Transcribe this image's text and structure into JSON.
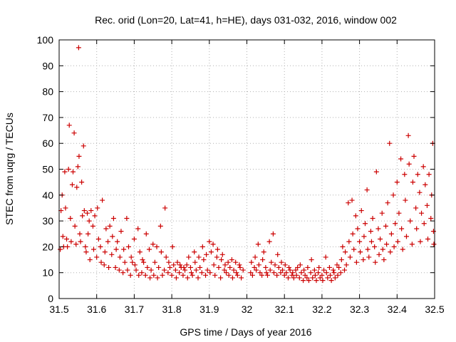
{
  "chart_data": {
    "type": "scatter",
    "title": "Rec. orid (Lon=20, Lat=41, h=HE), days 031-032, 2016, window 002",
    "xlabel": "GPS time / Days of year 2016",
    "ylabel": "STEC from uqrg / TECUs",
    "xlim": [
      31.5,
      32.5
    ],
    "ylim": [
      0,
      100
    ],
    "xticks": [
      "31.5",
      "31.6",
      "31.7",
      "31.8",
      "31.9",
      "32",
      "32.1",
      "32.2",
      "32.3",
      "32.4",
      "32.5"
    ],
    "yticks": [
      "0",
      "10",
      "20",
      "30",
      "40",
      "50",
      "60",
      "70",
      "80",
      "90",
      "100"
    ],
    "marker": "plus",
    "color": "#cc0000",
    "grid": true,
    "series": [
      {
        "name": "STEC",
        "points": [
          [
            31.503,
            19
          ],
          [
            31.505,
            34
          ],
          [
            31.508,
            40
          ],
          [
            31.51,
            24
          ],
          [
            31.512,
            20
          ],
          [
            31.515,
            49
          ],
          [
            31.517,
            35
          ],
          [
            31.52,
            23
          ],
          [
            31.522,
            20
          ],
          [
            31.525,
            50
          ],
          [
            31.527,
            67
          ],
          [
            31.53,
            31
          ],
          [
            31.532,
            22
          ],
          [
            31.535,
            44
          ],
          [
            31.537,
            49
          ],
          [
            31.54,
            64
          ],
          [
            31.542,
            28
          ],
          [
            31.545,
            21
          ],
          [
            31.547,
            43
          ],
          [
            31.55,
            51
          ],
          [
            31.552,
            97
          ],
          [
            31.553,
            55
          ],
          [
            31.555,
            25
          ],
          [
            31.557,
            22
          ],
          [
            31.56,
            45
          ],
          [
            31.562,
            32
          ],
          [
            31.565,
            59
          ],
          [
            31.567,
            34
          ],
          [
            31.57,
            20
          ],
          [
            31.572,
            18
          ],
          [
            31.575,
            33
          ],
          [
            31.577,
            25
          ],
          [
            31.58,
            30
          ],
          [
            31.582,
            15
          ],
          [
            31.585,
            34
          ],
          [
            31.59,
            28
          ],
          [
            31.592,
            19
          ],
          [
            31.595,
            32
          ],
          [
            31.6,
            16
          ],
          [
            31.602,
            35
          ],
          [
            31.605,
            23
          ],
          [
            31.61,
            20
          ],
          [
            31.612,
            14
          ],
          [
            31.615,
            38
          ],
          [
            31.62,
            13
          ],
          [
            31.622,
            18
          ],
          [
            31.625,
            27
          ],
          [
            31.63,
            22
          ],
          [
            31.632,
            12
          ],
          [
            31.635,
            28
          ],
          [
            31.64,
            17
          ],
          [
            31.642,
            24
          ],
          [
            31.645,
            31
          ],
          [
            31.65,
            12
          ],
          [
            31.652,
            19
          ],
          [
            31.655,
            22
          ],
          [
            31.66,
            11
          ],
          [
            31.662,
            16
          ],
          [
            31.665,
            26
          ],
          [
            31.67,
            10
          ],
          [
            31.672,
            19
          ],
          [
            31.675,
            14
          ],
          [
            31.68,
            31
          ],
          [
            31.682,
            11
          ],
          [
            31.685,
            20
          ],
          [
            31.69,
            9
          ],
          [
            31.692,
            16
          ],
          [
            31.695,
            14
          ],
          [
            31.7,
            23
          ],
          [
            31.702,
            13
          ],
          [
            31.705,
            11
          ],
          [
            31.71,
            27
          ],
          [
            31.712,
            9
          ],
          [
            31.715,
            18
          ],
          [
            31.72,
            10
          ],
          [
            31.722,
            15
          ],
          [
            31.725,
            14
          ],
          [
            31.73,
            9
          ],
          [
            31.732,
            25
          ],
          [
            31.735,
            12
          ],
          [
            31.74,
            19
          ],
          [
            31.742,
            8
          ],
          [
            31.745,
            11
          ],
          [
            31.75,
            21
          ],
          [
            31.752,
            9
          ],
          [
            31.755,
            14
          ],
          [
            31.76,
            20
          ],
          [
            31.762,
            8
          ],
          [
            31.765,
            12
          ],
          [
            31.77,
            28
          ],
          [
            31.772,
            18
          ],
          [
            31.775,
            9
          ],
          [
            31.78,
            11
          ],
          [
            31.782,
            35
          ],
          [
            31.785,
            16
          ],
          [
            31.79,
            10
          ],
          [
            31.792,
            14
          ],
          [
            31.795,
            12
          ],
          [
            31.8,
            9
          ],
          [
            31.802,
            20
          ],
          [
            31.805,
            13
          ],
          [
            31.81,
            11
          ],
          [
            31.812,
            8
          ],
          [
            31.815,
            14
          ],
          [
            31.82,
            10
          ],
          [
            31.822,
            13
          ],
          [
            31.825,
            12
          ],
          [
            31.83,
            9
          ],
          [
            31.832,
            12
          ],
          [
            31.835,
            11
          ],
          [
            31.84,
            13
          ],
          [
            31.842,
            8
          ],
          [
            31.845,
            16
          ],
          [
            31.85,
            12
          ],
          [
            31.852,
            10
          ],
          [
            31.855,
            9
          ],
          [
            31.86,
            18
          ],
          [
            31.862,
            14
          ],
          [
            31.865,
            11
          ],
          [
            31.87,
            8
          ],
          [
            31.872,
            16
          ],
          [
            31.875,
            12
          ],
          [
            31.88,
            10
          ],
          [
            31.882,
            20
          ],
          [
            31.885,
            15
          ],
          [
            31.89,
            9
          ],
          [
            31.892,
            17
          ],
          [
            31.895,
            11
          ],
          [
            31.9,
            22
          ],
          [
            31.902,
            10
          ],
          [
            31.905,
            18
          ],
          [
            31.91,
            21
          ],
          [
            31.912,
            13
          ],
          [
            31.915,
            9
          ],
          [
            31.92,
            16
          ],
          [
            31.922,
            19
          ],
          [
            31.925,
            12
          ],
          [
            31.93,
            8
          ],
          [
            31.932,
            15
          ],
          [
            31.935,
            17
          ],
          [
            31.94,
            11
          ],
          [
            31.942,
            13
          ],
          [
            31.945,
            10
          ],
          [
            31.95,
            14
          ],
          [
            31.952,
            9
          ],
          [
            31.955,
            12
          ],
          [
            31.96,
            15
          ],
          [
            31.962,
            8
          ],
          [
            31.965,
            11
          ],
          [
            31.97,
            14
          ],
          [
            31.972,
            10
          ],
          [
            31.975,
            9
          ],
          [
            31.98,
            13
          ],
          [
            31.982,
            12
          ],
          [
            31.985,
            8
          ],
          [
            31.99,
            11
          ],
          [
            32.01,
            10
          ],
          [
            32.012,
            14
          ],
          [
            32.015,
            9
          ],
          [
            32.02,
            12
          ],
          [
            32.022,
            16
          ],
          [
            32.025,
            11
          ],
          [
            32.03,
            21
          ],
          [
            32.032,
            13
          ],
          [
            32.035,
            10
          ],
          [
            32.04,
            9
          ],
          [
            32.042,
            15
          ],
          [
            32.045,
            18
          ],
          [
            32.05,
            12
          ],
          [
            32.052,
            10
          ],
          [
            32.055,
            9
          ],
          [
            32.06,
            22
          ],
          [
            32.062,
            11
          ],
          [
            32.065,
            14
          ],
          [
            32.07,
            25
          ],
          [
            32.072,
            10
          ],
          [
            32.075,
            13
          ],
          [
            32.08,
            9
          ],
          [
            32.082,
            17
          ],
          [
            32.085,
            12
          ],
          [
            32.09,
            10
          ],
          [
            32.092,
            14
          ],
          [
            32.095,
            11
          ],
          [
            32.1,
            9
          ],
          [
            32.102,
            13
          ],
          [
            32.105,
            10
          ],
          [
            32.11,
            8
          ],
          [
            32.112,
            12
          ],
          [
            32.115,
            11
          ],
          [
            32.12,
            9
          ],
          [
            32.122,
            10
          ],
          [
            32.125,
            8
          ],
          [
            32.13,
            11
          ],
          [
            32.132,
            9
          ],
          [
            32.135,
            12
          ],
          [
            32.14,
            8
          ],
          [
            32.142,
            13
          ],
          [
            32.145,
            10
          ],
          [
            32.15,
            7
          ],
          [
            32.152,
            11
          ],
          [
            32.155,
            9
          ],
          [
            32.16,
            8
          ],
          [
            32.162,
            12
          ],
          [
            32.165,
            7
          ],
          [
            32.17,
            10
          ],
          [
            32.172,
            15
          ],
          [
            32.175,
            8
          ],
          [
            32.18,
            11
          ],
          [
            32.182,
            9
          ],
          [
            32.185,
            7
          ],
          [
            32.19,
            10
          ],
          [
            32.192,
            12
          ],
          [
            32.195,
            8
          ],
          [
            32.2,
            9
          ],
          [
            32.202,
            7
          ],
          [
            32.205,
            11
          ],
          [
            32.21,
            16
          ],
          [
            32.212,
            10
          ],
          [
            32.215,
            8
          ],
          [
            32.22,
            12
          ],
          [
            32.222,
            9
          ],
          [
            32.225,
            7
          ],
          [
            32.23,
            11
          ],
          [
            32.232,
            10
          ],
          [
            32.235,
            8
          ],
          [
            32.24,
            13
          ],
          [
            32.242,
            9
          ],
          [
            32.245,
            12
          ],
          [
            32.25,
            10
          ],
          [
            32.252,
            15
          ],
          [
            32.255,
            20
          ],
          [
            32.26,
            11
          ],
          [
            32.262,
            18
          ],
          [
            32.265,
            13
          ],
          [
            32.27,
            37
          ],
          [
            32.272,
            22
          ],
          [
            32.275,
            16
          ],
          [
            32.28,
            38
          ],
          [
            32.282,
            25
          ],
          [
            32.285,
            19
          ],
          [
            32.29,
            32
          ],
          [
            32.292,
            14
          ],
          [
            32.295,
            27
          ],
          [
            32.3,
            22
          ],
          [
            32.302,
            18
          ],
          [
            32.305,
            34
          ],
          [
            32.31,
            15
          ],
          [
            32.312,
            24
          ],
          [
            32.315,
            29
          ],
          [
            32.32,
            42
          ],
          [
            32.322,
            19
          ],
          [
            32.325,
            16
          ],
          [
            32.33,
            26
          ],
          [
            32.332,
            22
          ],
          [
            32.335,
            31
          ],
          [
            32.34,
            20
          ],
          [
            32.342,
            14
          ],
          [
            32.345,
            49
          ],
          [
            32.35,
            27
          ],
          [
            32.352,
            17
          ],
          [
            32.355,
            23
          ],
          [
            32.36,
            33
          ],
          [
            32.362,
            19
          ],
          [
            32.365,
            15
          ],
          [
            32.37,
            28
          ],
          [
            32.372,
            21
          ],
          [
            32.375,
            37
          ],
          [
            32.38,
            60
          ],
          [
            32.382,
            18
          ],
          [
            32.385,
            25
          ],
          [
            32.39,
            40
          ],
          [
            32.392,
            20
          ],
          [
            32.395,
            29
          ],
          [
            32.4,
            45
          ],
          [
            32.402,
            22
          ],
          [
            32.405,
            33
          ],
          [
            32.41,
            54
          ],
          [
            32.412,
            27
          ],
          [
            32.415,
            19
          ],
          [
            32.42,
            48
          ],
          [
            32.422,
            38
          ],
          [
            32.425,
            24
          ],
          [
            32.43,
            63
          ],
          [
            32.432,
            52
          ],
          [
            32.435,
            30
          ],
          [
            32.44,
            21
          ],
          [
            32.442,
            45
          ],
          [
            32.445,
            55
          ],
          [
            32.45,
            35
          ],
          [
            32.452,
            27
          ],
          [
            32.455,
            48
          ],
          [
            32.46,
            41
          ],
          [
            32.462,
            22
          ],
          [
            32.465,
            33
          ],
          [
            32.47,
            51
          ],
          [
            32.472,
            29
          ],
          [
            32.475,
            44
          ],
          [
            32.48,
            36
          ],
          [
            32.482,
            23
          ],
          [
            32.485,
            48
          ],
          [
            32.49,
            31
          ],
          [
            32.492,
            40
          ],
          [
            32.495,
            60
          ],
          [
            32.497,
            26
          ],
          [
            32.498,
            21
          ]
        ]
      }
    ]
  }
}
